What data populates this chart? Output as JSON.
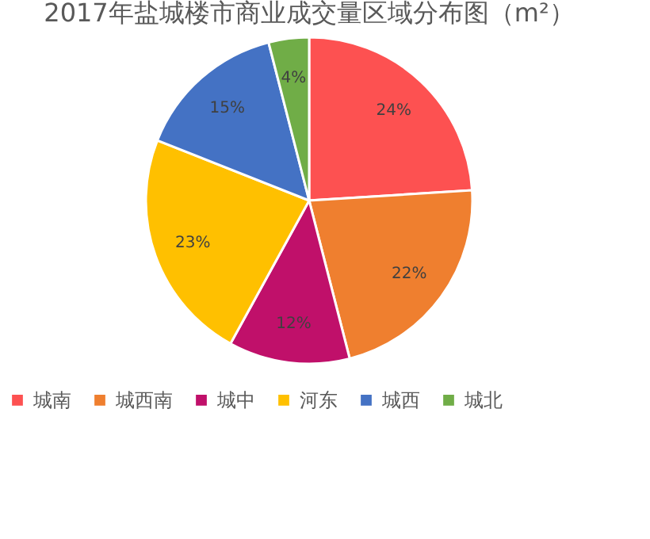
{
  "chart_data": {
    "type": "pie",
    "title": "2017年盐城楼市商业成交量区域分布图（m²）",
    "categories": [
      "城南",
      "城西南",
      "城中",
      "河东",
      "城西",
      "城北"
    ],
    "values": [
      24,
      22,
      12,
      23,
      15,
      4
    ],
    "colors": [
      "#fd5151",
      "#ef7f2f",
      "#c0106a",
      "#ffc000",
      "#4472c4",
      "#70ad47"
    ],
    "value_labels": [
      "24%",
      "22%",
      "12%",
      "23%",
      "15%",
      "4%"
    ],
    "legend": "bottom"
  }
}
